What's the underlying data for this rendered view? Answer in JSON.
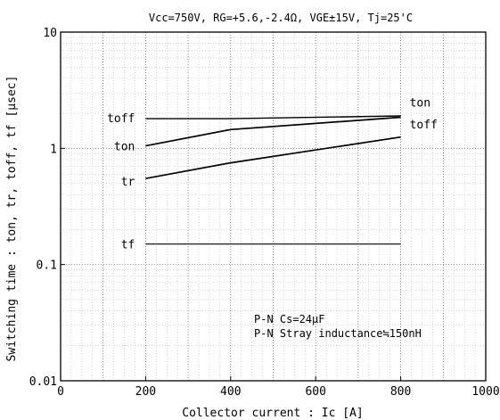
{
  "chart_data": {
    "type": "line",
    "title": "Vcc=750V,  RG=+5.6,-2.4Ω,  VGE±15V, Tj=25'C",
    "xlabel": "Collector current : Ic [A]",
    "ylabel": "Switching time : ton, tr, toff, tf [μsec]",
    "x_ticks": [
      "0",
      "200",
      "400",
      "600",
      "800",
      "1000"
    ],
    "y_ticks": [
      "0.01",
      "0.1",
      "1",
      "10"
    ],
    "xlim": [
      0,
      1000
    ],
    "ylim": [
      0.01,
      10
    ],
    "yscale": "log",
    "grid": true,
    "series": [
      {
        "name": "ton",
        "x": [
          200,
          400,
          800
        ],
        "values": [
          1.05,
          1.45,
          1.85
        ]
      },
      {
        "name": "tr",
        "x": [
          200,
          400,
          800
        ],
        "values": [
          0.55,
          0.75,
          1.25
        ]
      },
      {
        "name": "toff",
        "x": [
          200,
          400,
          800
        ],
        "values": [
          1.8,
          1.8,
          1.9
        ]
      },
      {
        "name": "tf",
        "x": [
          200,
          800
        ],
        "values": [
          0.15,
          0.15
        ]
      }
    ],
    "annotations": [
      "P-N Cs=24μF",
      "P-N Stray inductance≒150nH"
    ]
  }
}
